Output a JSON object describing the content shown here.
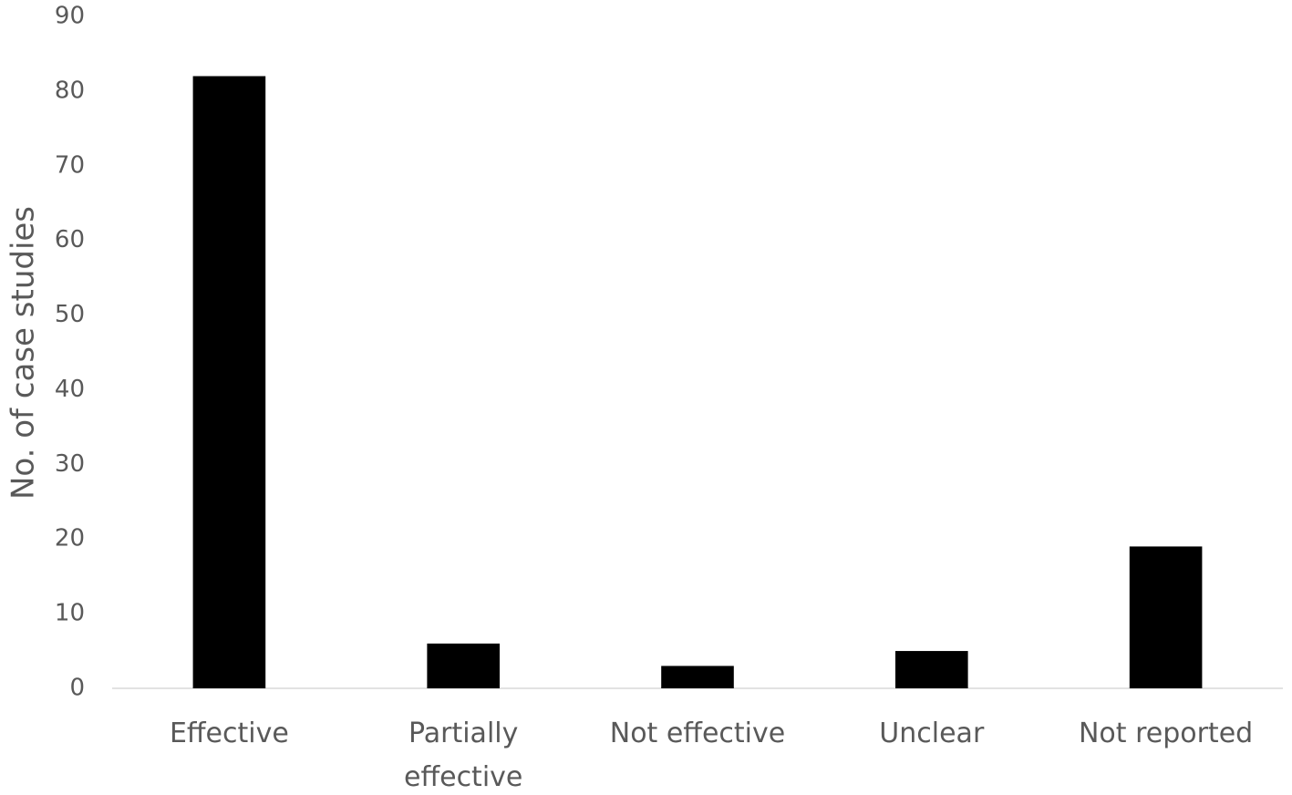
{
  "chart_data": {
    "type": "bar",
    "y_label": "No. of case studies",
    "categories": [
      "Effective",
      "Partially effective",
      "Not effective",
      "Unclear",
      "Not reported"
    ],
    "values": [
      82,
      6,
      3,
      5,
      19
    ],
    "color": "#000000",
    "ylim": [
      0,
      90
    ],
    "yticks": [
      0,
      10,
      20,
      30,
      40,
      50,
      60,
      70,
      80,
      90
    ],
    "grid": false
  }
}
